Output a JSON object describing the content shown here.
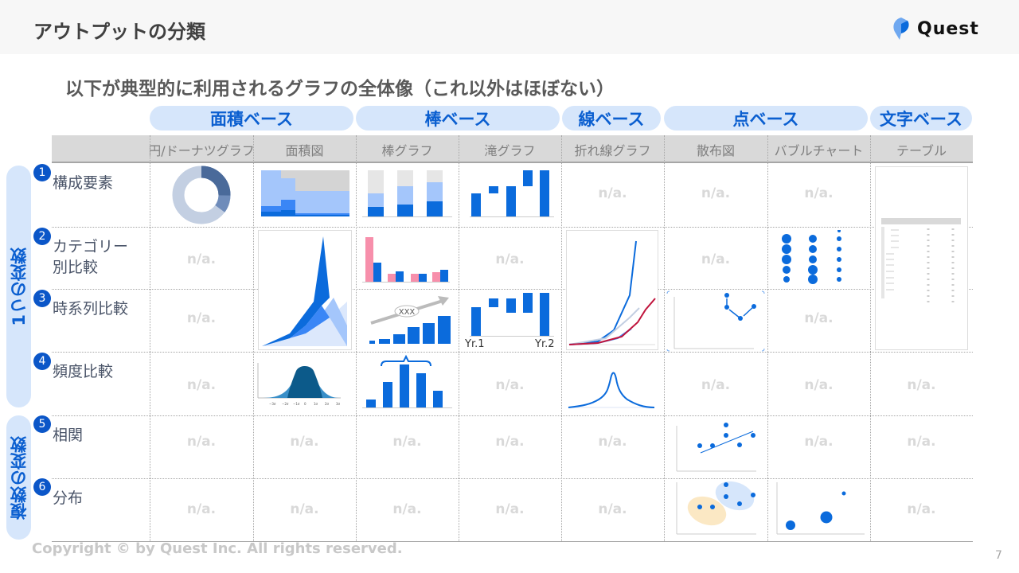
{
  "header": {
    "title": "アウトプットの分類",
    "logo_text": "Quest"
  },
  "subtitle": "以下が典型的に利用されるグラフの全体像（これ以外はほぼない）",
  "categories": [
    {
      "label": "面積ベース"
    },
    {
      "label": "棒ベース"
    },
    {
      "label": "線ベース"
    },
    {
      "label": "点ベース"
    },
    {
      "label": "文字ベース"
    }
  ],
  "columns": [
    "円/ドーナツグラフ",
    "面積図",
    "棒グラフ",
    "滝グラフ",
    "折れ線グラフ",
    "散布図",
    "バブルチャート",
    "テーブル"
  ],
  "groups": [
    {
      "label": "1つの変数"
    },
    {
      "label": "複数の変数"
    }
  ],
  "rows": [
    {
      "num": "1",
      "label": "構成要素",
      "cells": [
        null,
        null,
        null,
        null,
        "n/a.",
        "n/a.",
        "n/a.",
        null
      ]
    },
    {
      "num": "2",
      "label": "カテゴリー別比較",
      "cells": [
        "n/a.",
        null,
        null,
        "n/a.",
        null,
        "n/a.",
        null,
        null
      ]
    },
    {
      "num": "3",
      "label": "時系列比較",
      "cells": [
        "n/a.",
        null,
        null,
        null,
        null,
        null,
        "n/a.",
        null
      ]
    },
    {
      "num": "4",
      "label": "頻度比較",
      "cells": [
        "n/a.",
        null,
        null,
        "n/a.",
        null,
        "n/a.",
        "n/a.",
        "n/a."
      ]
    },
    {
      "num": "5",
      "label": "相関",
      "cells": [
        "n/a.",
        "n/a.",
        "n/a.",
        "n/a.",
        "n/a.",
        null,
        "n/a.",
        "n/a."
      ]
    },
    {
      "num": "6",
      "label": "分布",
      "cells": [
        "n/a.",
        "n/a.",
        "n/a.",
        "n/a.",
        "n/a.",
        null,
        null,
        "n/a."
      ]
    }
  ],
  "waterfall_labels": {
    "start": "Yr.1",
    "end": "Yr.2"
  },
  "bar_callout": "XXX",
  "colors": {
    "accent": "#0b6bdc",
    "pill_bg": "#d6e6fb",
    "pink": "#f78fab",
    "red": "#c0143c",
    "na": "#d9d9d9"
  },
  "footer": {
    "copyright": "Copyright © by Quest Inc. All rights reserved.",
    "page": "7"
  }
}
